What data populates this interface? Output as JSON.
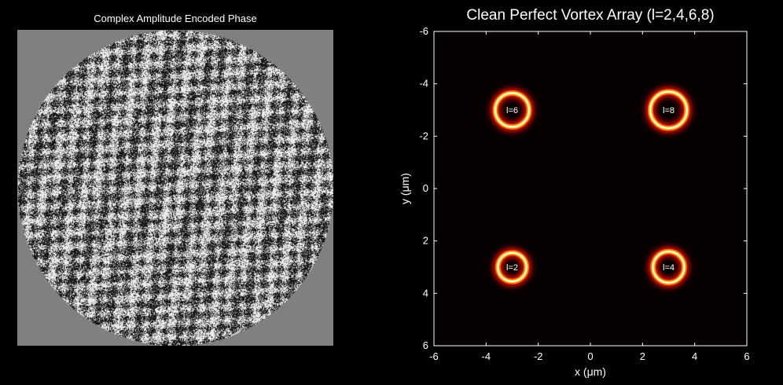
{
  "chart_data": [
    {
      "type": "heatmap",
      "title": "Complex Amplitude Encoded Phase",
      "aperture": "circular",
      "background_color": "#808080",
      "pattern": "binary black/white phase noise with diagonal stripe modulation"
    },
    {
      "type": "heatmap",
      "title": "Clean Perfect Vortex Array (l=2,4,6,8)",
      "xlabel": "x (μm)",
      "ylabel": "y (μm)",
      "xlim": [
        -6,
        6
      ],
      "ylim": [
        -6,
        6
      ],
      "y_reversed": true,
      "xticks": [
        "-6",
        "-4",
        "-2",
        "0",
        "2",
        "4",
        "6"
      ],
      "yticks": [
        "-6",
        "-4",
        "-2",
        "0",
        "2",
        "4",
        "6"
      ],
      "colormap": "hot",
      "background_color": "#070000",
      "rings": [
        {
          "label": "l=6",
          "x": -3,
          "y": -3,
          "radius": 0.65
        },
        {
          "label": "l=8",
          "x": 3,
          "y": -3,
          "radius": 0.7
        },
        {
          "label": "l=2",
          "x": -3,
          "y": 3,
          "radius": 0.55
        },
        {
          "label": "l=4",
          "x": 3,
          "y": 3,
          "radius": 0.6
        }
      ]
    }
  ]
}
